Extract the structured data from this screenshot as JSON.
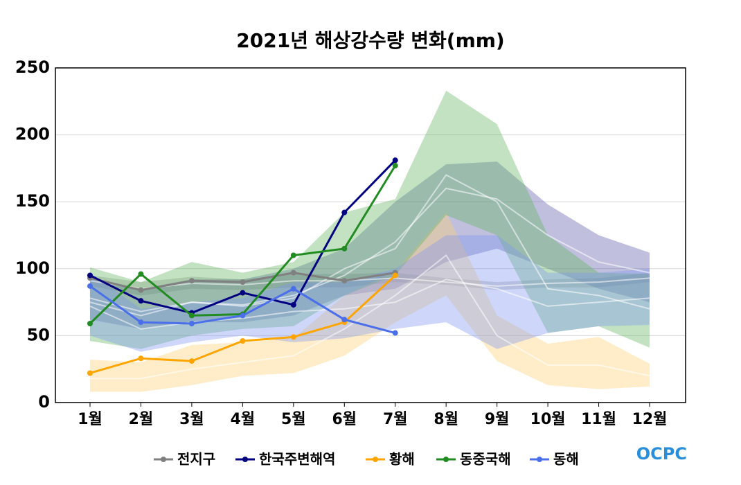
{
  "chart_data": {
    "type": "line",
    "title": "2021년 해상강수량 변화(mm)",
    "logo": "OCPC",
    "categories": [
      "1월",
      "2월",
      "3월",
      "4월",
      "5월",
      "6월",
      "7월",
      "8월",
      "9월",
      "10월",
      "11월",
      "12월"
    ],
    "ylim": [
      0,
      250
    ],
    "yticks": [
      0,
      50,
      100,
      150,
      200,
      250
    ],
    "grid": true,
    "legend": "bottom",
    "series": [
      {
        "name": "전지구",
        "color": "#808080",
        "band_color": "#9a9a9a",
        "values": [
          93,
          84,
          91,
          90,
          97,
          91,
          97,
          null,
          null,
          null,
          null,
          null
        ],
        "low": [
          87,
          80,
          85,
          84,
          86,
          86,
          90,
          88,
          84,
          86,
          86,
          90
        ],
        "high": [
          95,
          90,
          94,
          92,
          96,
          96,
          97,
          93,
          90,
          92,
          93,
          97
        ],
        "mean": [
          91,
          85,
          89,
          88,
          91,
          91,
          93,
          90,
          87,
          89,
          90,
          93
        ]
      },
      {
        "name": "한국주변해역",
        "color": "#000080",
        "band_color": "#5a5aa8",
        "values": [
          95,
          76,
          67,
          82,
          73,
          142,
          181,
          null,
          null,
          null,
          null,
          null
        ],
        "low": [
          62,
          55,
          60,
          60,
          65,
          80,
          85,
          105,
          115,
          100,
          85,
          75
        ],
        "high": [
          92,
          85,
          92,
          92,
          100,
          115,
          150,
          178,
          180,
          148,
          125,
          112
        ],
        "mean": [
          78,
          68,
          75,
          73,
          80,
          95,
          120,
          160,
          152,
          125,
          105,
          97
        ]
      },
      {
        "name": "황해",
        "color": "#ffa500",
        "band_color": "#ffcf70",
        "values": [
          22,
          33,
          31,
          46,
          49,
          60,
          95,
          null,
          null,
          null,
          null,
          null
        ],
        "low": [
          8,
          8,
          13,
          20,
          22,
          35,
          60,
          80,
          31,
          13,
          10,
          12
        ],
        "high": [
          32,
          30,
          43,
          45,
          48,
          80,
          98,
          142,
          65,
          44,
          49,
          29
        ],
        "mean": [
          18,
          18,
          25,
          30,
          35,
          55,
          80,
          110,
          50,
          28,
          28,
          20
        ]
      },
      {
        "name": "동중국해",
        "color": "#228b22",
        "band_color": "#5fb35f",
        "values": [
          59,
          96,
          65,
          66,
          110,
          115,
          177,
          null,
          null,
          null,
          null,
          null
        ],
        "low": [
          46,
          40,
          50,
          55,
          57,
          80,
          95,
          140,
          125,
          52,
          57,
          41
        ],
        "high": [
          101,
          90,
          105,
          97,
          105,
          142,
          152,
          233,
          208,
          125,
          97,
          96
        ],
        "mean": [
          75,
          65,
          75,
          72,
          78,
          100,
          115,
          170,
          150,
          85,
          80,
          70
        ]
      },
      {
        "name": "동해",
        "color": "#4a6fe8",
        "band_color": "#7d95f0",
        "values": [
          87,
          60,
          59,
          65,
          85,
          62,
          52,
          null,
          null,
          null,
          null,
          null
        ],
        "low": [
          50,
          38,
          45,
          50,
          45,
          48,
          55,
          60,
          40,
          52,
          57,
          58
        ],
        "high": [
          97,
          70,
          75,
          78,
          90,
          90,
          100,
          125,
          125,
          97,
          97,
          100
        ],
        "mean": [
          72,
          55,
          60,
          63,
          68,
          70,
          75,
          92,
          85,
          72,
          75,
          78
        ]
      }
    ]
  }
}
